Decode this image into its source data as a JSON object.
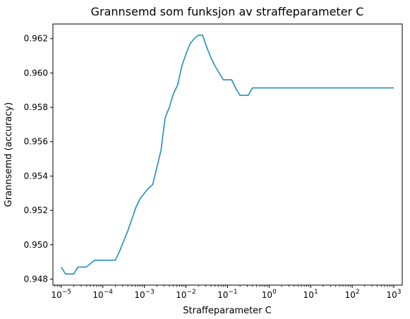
{
  "chart_data": {
    "type": "line",
    "title": "Grannsemd som funksjon av straffeparameter C",
    "xlabel": "Straffeparameter C",
    "ylabel": "Grannsemd (accuracy)",
    "x_scale": "log",
    "xlim": [
      6.3e-06,
      1600
    ],
    "ylim": [
      0.94765,
      0.96285
    ],
    "grid": false,
    "line_color": "#1f8fbf",
    "x_ticks": [
      {
        "value": 1e-05,
        "base": "10",
        "exp": "−5"
      },
      {
        "value": 0.0001,
        "base": "10",
        "exp": "−4"
      },
      {
        "value": 0.001,
        "base": "10",
        "exp": "−3"
      },
      {
        "value": 0.01,
        "base": "10",
        "exp": "−2"
      },
      {
        "value": 0.1,
        "base": "10",
        "exp": "−1"
      },
      {
        "value": 1,
        "base": "10",
        "exp": "0"
      },
      {
        "value": 10,
        "base": "10",
        "exp": "1"
      },
      {
        "value": 100,
        "base": "10",
        "exp": "2"
      },
      {
        "value": 1000,
        "base": "10",
        "exp": "3"
      }
    ],
    "y_ticks": [
      {
        "value": 0.948,
        "label": "0.948"
      },
      {
        "value": 0.95,
        "label": "0.950"
      },
      {
        "value": 0.952,
        "label": "0.952"
      },
      {
        "value": 0.954,
        "label": "0.954"
      },
      {
        "value": 0.956,
        "label": "0.956"
      },
      {
        "value": 0.958,
        "label": "0.958"
      },
      {
        "value": 0.96,
        "label": "0.960"
      },
      {
        "value": 0.962,
        "label": "0.962"
      }
    ],
    "series": [
      {
        "x": [
          1e-05,
          1.26e-05,
          1.58e-05,
          2e-05,
          2.51e-05,
          3.16e-05,
          3.98e-05,
          5.01e-05,
          6.31e-05,
          7.94e-05,
          0.0001,
          0.000126,
          0.000158,
          0.0002,
          0.000251,
          0.000316,
          0.000398,
          0.000501,
          0.000631,
          0.000794,
          0.001,
          0.00126,
          0.00158,
          0.002,
          0.00251,
          0.00316,
          0.00398,
          0.00501,
          0.00631,
          0.00794,
          0.01,
          0.0126,
          0.0158,
          0.02,
          0.0251,
          0.0316,
          0.0398,
          0.0501,
          0.0631,
          0.0794,
          0.1,
          0.126,
          0.158,
          0.2,
          0.251,
          0.316,
          0.398,
          1,
          10,
          100,
          1000
        ],
        "y": [
          0.9487,
          0.9483,
          0.9483,
          0.9483,
          0.9487,
          0.9487,
          0.9487,
          0.9489,
          0.9491,
          0.9491,
          0.9491,
          0.9491,
          0.9491,
          0.9491,
          0.9496,
          0.9502,
          0.9508,
          0.9515,
          0.9522,
          0.9527,
          0.953,
          0.9533,
          0.9535,
          0.9545,
          0.9555,
          0.9574,
          0.958,
          0.9588,
          0.9593,
          0.9604,
          0.9611,
          0.9617,
          0.962,
          0.9622,
          0.9622,
          0.9615,
          0.9609,
          0.9604,
          0.96,
          0.9596,
          0.9596,
          0.9596,
          0.9591,
          0.9587,
          0.9587,
          0.9587,
          0.95913,
          0.95913,
          0.95913,
          0.95913,
          0.95913
        ]
      }
    ]
  }
}
